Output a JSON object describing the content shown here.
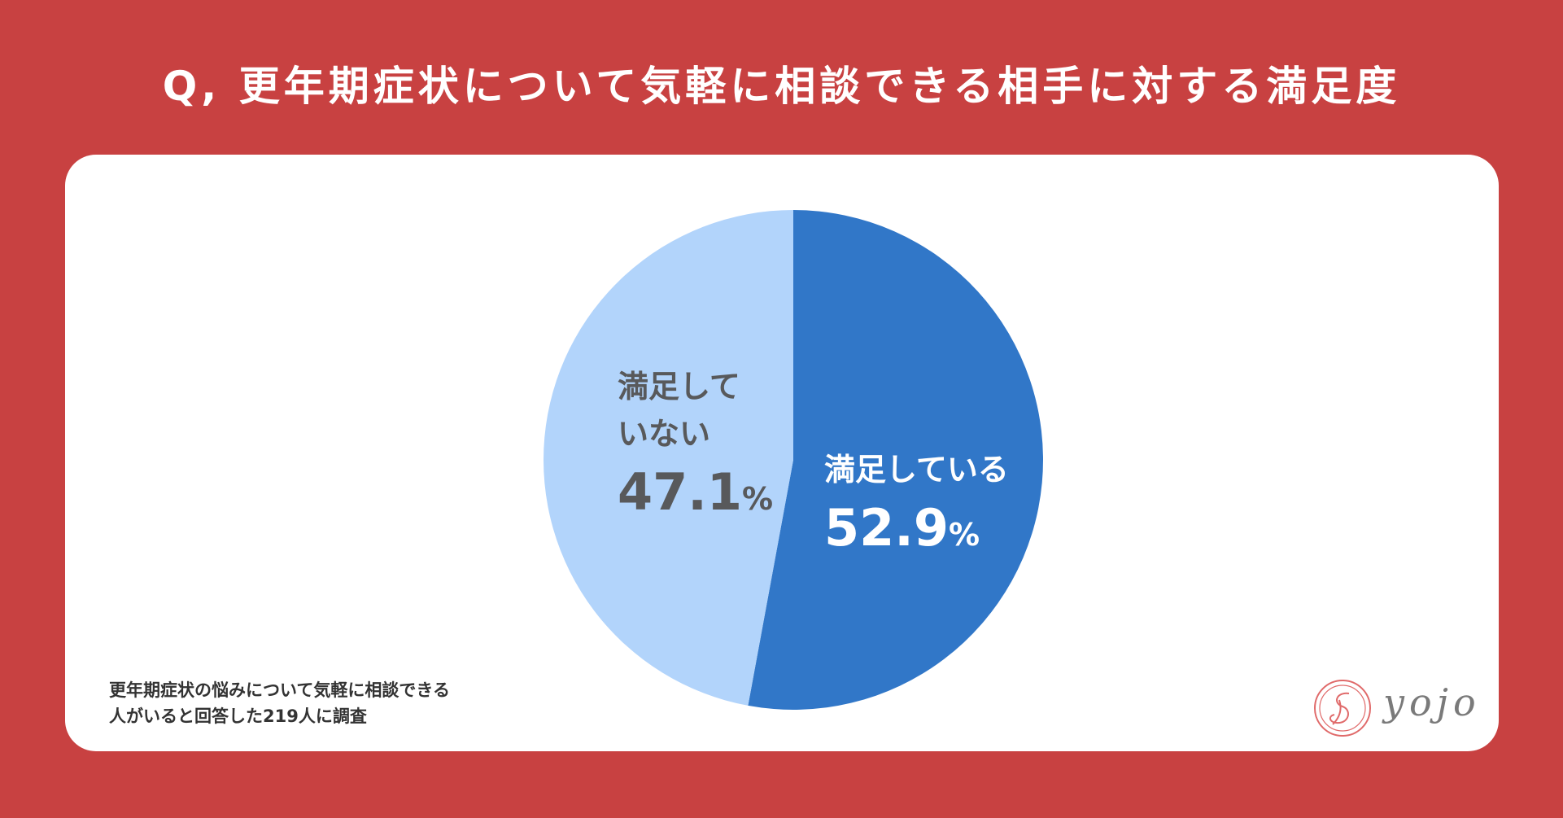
{
  "title": "Q, 更年期症状について気軽に相談できる相手に対する満足度",
  "note": {
    "line1": "更年期症状の悩みについて気軽に相談できる",
    "line2": "人がいると回答した219人に調査"
  },
  "logo": {
    "text": "yojo"
  },
  "colors": {
    "background": "#c84141",
    "satisfied": "#3177c8",
    "not_satisfied": "#b2d4fb"
  },
  "chart_data": {
    "type": "pie",
    "title": "",
    "categories": [
      "満足している",
      "満足していない"
    ],
    "values": [
      52.9,
      47.1
    ],
    "value_labels": [
      "52.9",
      "47.1"
    ],
    "unit": "%",
    "colors": [
      "#3177c8",
      "#b2d4fb"
    ],
    "start": "12 o'clock",
    "direction": "clockwise"
  }
}
